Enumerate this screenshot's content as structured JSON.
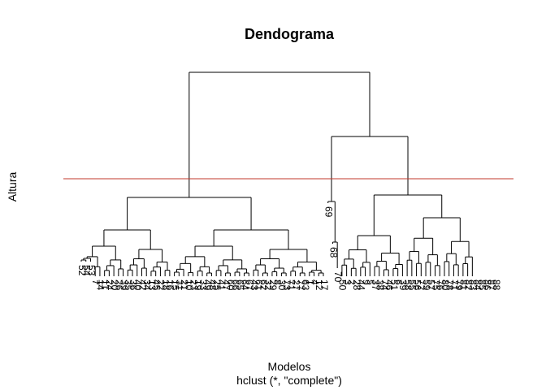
{
  "chart_data": {
    "type": "dendrogram",
    "title": "Dendograma",
    "xlabel": "Modelos",
    "ylabel": "Altura",
    "subtitle": "hclust (*, \"complete\")",
    "cut_line": {
      "color": "#c0392b"
    },
    "line_color": "#000000",
    "leaves": [
      "52",
      "54",
      "53",
      "7",
      "14",
      "11",
      "24",
      "20",
      "26",
      "39",
      "35",
      "36",
      "40",
      "42",
      "34",
      "13",
      "45",
      "22",
      "18",
      "16",
      "15",
      "31",
      "21",
      "10",
      "23",
      "19",
      "33",
      "49",
      "48",
      "25",
      "41",
      "47",
      "60",
      "66",
      "65",
      "64",
      "67",
      "43",
      "61",
      "62",
      "32",
      "29",
      "8",
      "30",
      "73",
      "71",
      "27",
      "77",
      "63",
      "1",
      "4",
      "12",
      "17",
      "69",
      "68",
      "70",
      "50",
      "3",
      "2",
      "28",
      "44",
      "9",
      "5",
      "37",
      "38",
      "74",
      "46",
      "51",
      "6",
      "39",
      "58",
      "55",
      "56",
      "72",
      "59",
      "57",
      "75",
      "76",
      "80",
      "78",
      "71",
      "79",
      "81",
      "82",
      "83",
      "84",
      "85",
      "86",
      "87",
      "88"
    ]
  }
}
